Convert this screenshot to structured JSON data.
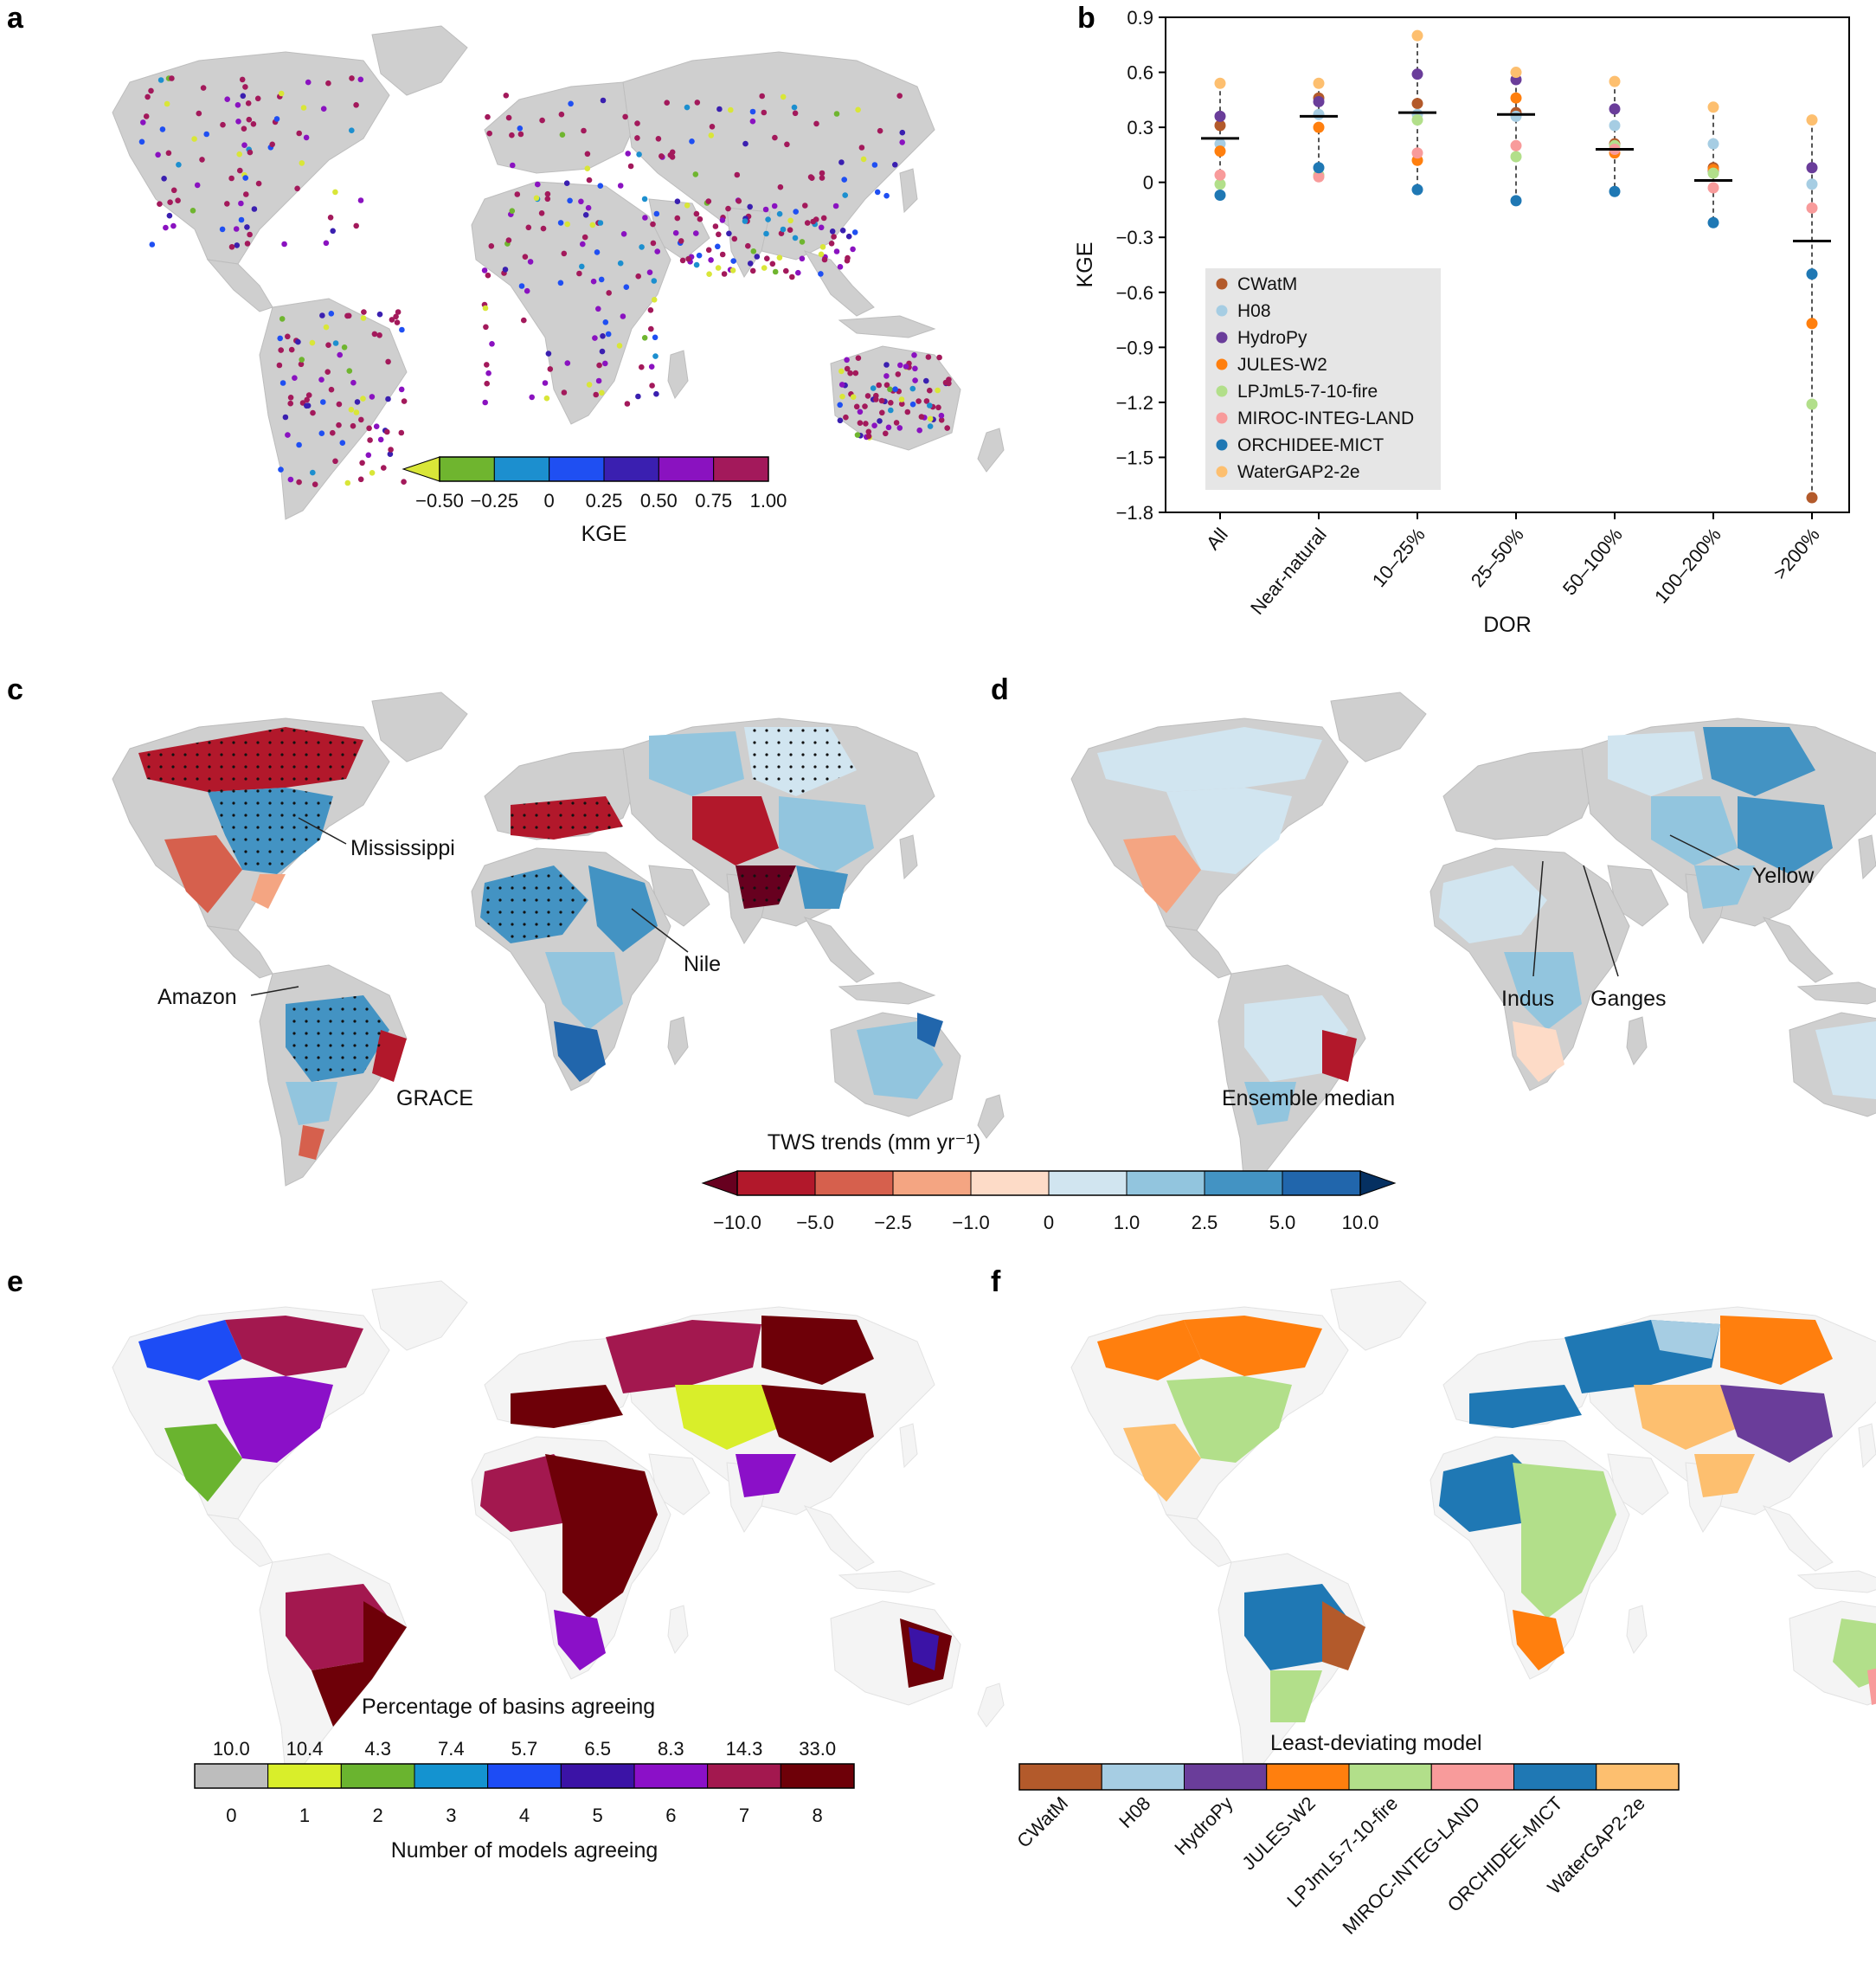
{
  "panels": {
    "a": {
      "label": "a",
      "colorbar": {
        "title": "KGE",
        "ticks": [
          "−0.50",
          "−0.25",
          "0",
          "0.25",
          "0.50",
          "0.75",
          "1.00"
        ],
        "colors": [
          "#6fb52f",
          "#1c8fcf",
          "#1f4ff2",
          "#3a1fb0",
          "#8a12c0",
          "#a3195b"
        ],
        "extend_color": "#d9e638"
      }
    },
    "b": {
      "label": "b"
    },
    "c": {
      "label": "c",
      "caption": "GRACE",
      "rivers": [
        "Mississippi",
        "Amazon",
        "Nile"
      ]
    },
    "d": {
      "label": "d",
      "caption": "Ensemble median",
      "rivers": [
        "Yellow",
        "Indus",
        "Ganges"
      ]
    },
    "cd_colorbar": {
      "title": "TWS trends (mm yr⁻¹)",
      "ticks": [
        "−10.0",
        "−5.0",
        "−2.5",
        "−1.0",
        "0",
        "1.0",
        "2.5",
        "5.0",
        "10.0"
      ],
      "colors": [
        "#b2182b",
        "#d6604d",
        "#f4a582",
        "#fddbc7",
        "#d1e5f0",
        "#92c5de",
        "#4393c3",
        "#2166ac"
      ],
      "extend_low": "#67001f",
      "extend_high": "#053061"
    },
    "e": {
      "label": "e",
      "caption": "Percentage of basins agreeing",
      "percentages": [
        "10.0",
        "10.4",
        "4.3",
        "7.4",
        "5.7",
        "6.5",
        "8.3",
        "14.3",
        "33.0"
      ],
      "counts": [
        "0",
        "1",
        "2",
        "3",
        "4",
        "5",
        "6",
        "7",
        "8"
      ],
      "colors": [
        "#bdbdbd",
        "#d9ee2a",
        "#6ab42f",
        "#1493d0",
        "#1d4cf5",
        "#3b13a6",
        "#8b10c8",
        "#a3184f",
        "#6e0008"
      ],
      "xlabel": "Number of models agreeing"
    },
    "f": {
      "label": "f",
      "caption": "Least-deviating model",
      "models": [
        "CWatM",
        "H08",
        "HydroPy",
        "JULES-W2",
        "LPJmL5-7-10-fire",
        "MIROC-INTEG-LAND",
        "ORCHIDEE-MICT",
        "WaterGAP2-2e"
      ],
      "colors": [
        "#b35a2b",
        "#a6cde3",
        "#6a3d9a",
        "#ff7f0e",
        "#b2df8a",
        "#f89b9b",
        "#1f78b4",
        "#fdbf6f"
      ]
    }
  },
  "chart_data": {
    "type": "scatter",
    "xlabel": "DOR",
    "ylabel": "KGE",
    "ylim": [
      -1.8,
      0.9
    ],
    "yticks": [
      "0.9",
      "0.6",
      "0.3",
      "0",
      "−0.3",
      "−0.6",
      "−0.9",
      "−1.2",
      "−1.5",
      "−1.8"
    ],
    "categories": [
      "All",
      "Near-natural",
      "10–25%",
      "25–50%",
      "50–100%",
      "100–200%",
      ">200%"
    ],
    "legend_position": "center-left",
    "series": [
      {
        "name": "CWatM",
        "color": "#b35a2b",
        "values": [
          0.31,
          0.46,
          0.43,
          0.38,
          0.21,
          0.08,
          -1.72
        ]
      },
      {
        "name": "H08",
        "color": "#a6cde3",
        "values": [
          0.21,
          0.37,
          0.37,
          0.36,
          0.31,
          0.21,
          -0.01
        ]
      },
      {
        "name": "HydroPy",
        "color": "#6a3d9a",
        "values": [
          0.36,
          0.44,
          0.59,
          0.56,
          0.4,
          0.06,
          0.08
        ]
      },
      {
        "name": "JULES-W2",
        "color": "#ff7f0e",
        "values": [
          0.17,
          0.3,
          0.12,
          0.46,
          0.16,
          0.07,
          -0.77
        ]
      },
      {
        "name": "LPJmL5-7-10-fire",
        "color": "#b2df8a",
        "values": [
          -0.01,
          0.04,
          0.34,
          0.14,
          0.2,
          0.05,
          -1.21
        ]
      },
      {
        "name": "MIROC-INTEG-LAND",
        "color": "#f89b9b",
        "values": [
          0.04,
          0.03,
          0.16,
          0.2,
          0.18,
          -0.03,
          -0.14
        ]
      },
      {
        "name": "ORCHIDEE-MICT",
        "color": "#1f78b4",
        "values": [
          -0.07,
          0.08,
          -0.04,
          -0.1,
          -0.05,
          -0.22,
          -0.5
        ]
      },
      {
        "name": "WaterGAP2-2e",
        "color": "#fdbf6f",
        "values": [
          0.54,
          0.54,
          0.8,
          0.6,
          0.55,
          0.41,
          0.34
        ]
      }
    ],
    "medians": [
      0.24,
      0.36,
      0.38,
      0.37,
      0.18,
      0.01,
      -0.32
    ]
  }
}
